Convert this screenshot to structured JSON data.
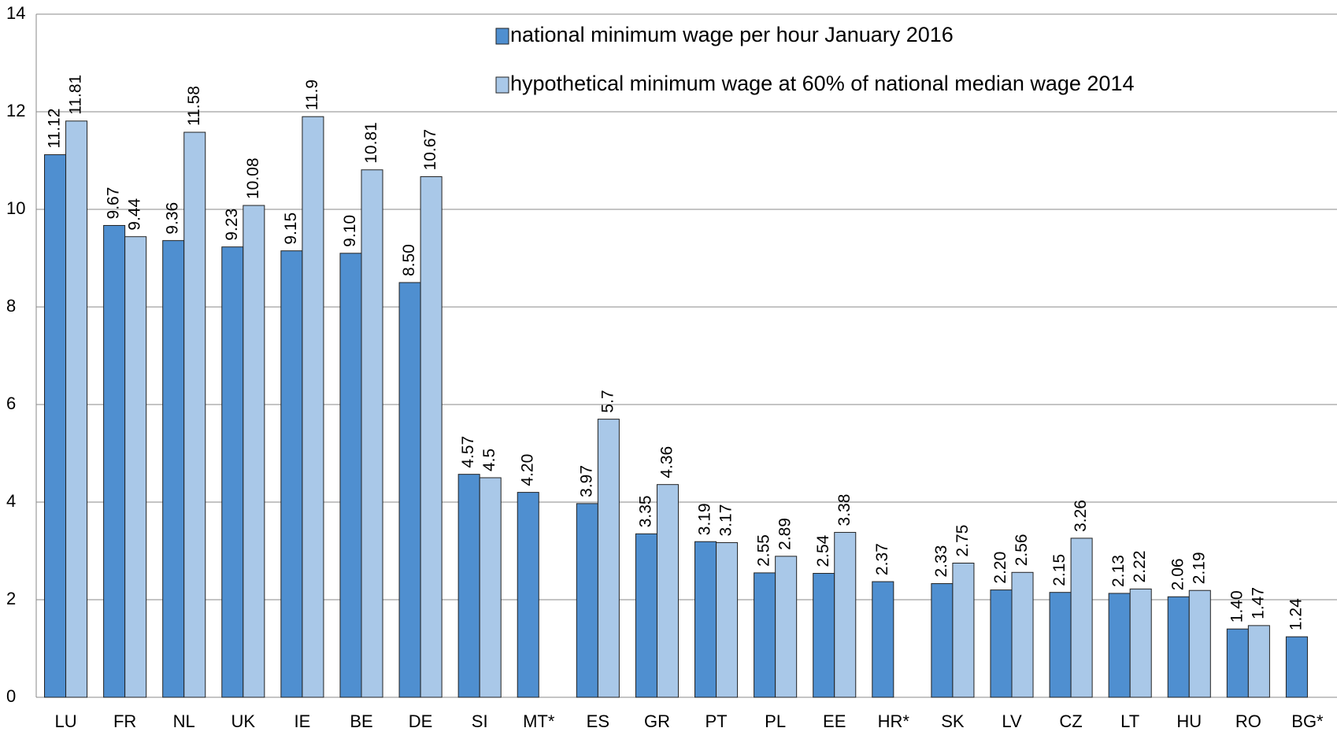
{
  "chart_data": {
    "type": "bar",
    "categories": [
      "LU",
      "FR",
      "NL",
      "UK",
      "IE",
      "BE",
      "DE",
      "SI",
      "MT*",
      "ES",
      "GR",
      "PT",
      "PL",
      "EE",
      "HR*",
      "SK",
      "LV",
      "CZ",
      "LT",
      "HU",
      "RO",
      "BG*"
    ],
    "series": [
      {
        "name": "national minimum wage per hour January 2016",
        "color": "#4f8fd0",
        "values": [
          11.12,
          9.67,
          9.36,
          9.23,
          9.15,
          9.1,
          8.5,
          4.57,
          4.2,
          3.97,
          3.35,
          3.19,
          2.55,
          2.54,
          2.37,
          2.33,
          2.2,
          2.15,
          2.13,
          2.06,
          1.4,
          1.24
        ],
        "value_labels": [
          "11.12",
          "9.67",
          "9.36",
          "9.23",
          "9.15",
          "9.10",
          "8.50",
          "4.57",
          "4.20",
          "3.97",
          "3.35",
          "3.19",
          "2.55",
          "2.54",
          "2.37",
          "2.33",
          "2.20",
          "2.15",
          "2.13",
          "2.06",
          "1.40",
          "1.24"
        ]
      },
      {
        "name": "hypothetical minimum wage at 60% of national median wage 2014",
        "color": "#a9c8e8",
        "values": [
          11.81,
          9.44,
          11.58,
          10.08,
          11.9,
          10.81,
          10.67,
          4.5,
          null,
          5.7,
          4.36,
          3.17,
          2.89,
          3.38,
          null,
          2.75,
          2.56,
          3.26,
          2.22,
          2.19,
          1.47,
          null
        ]
      }
    ],
    "ylim": [
      0,
      14
    ],
    "yticks": [
      0,
      2,
      4,
      6,
      8,
      10,
      12,
      14
    ],
    "grid": true
  }
}
